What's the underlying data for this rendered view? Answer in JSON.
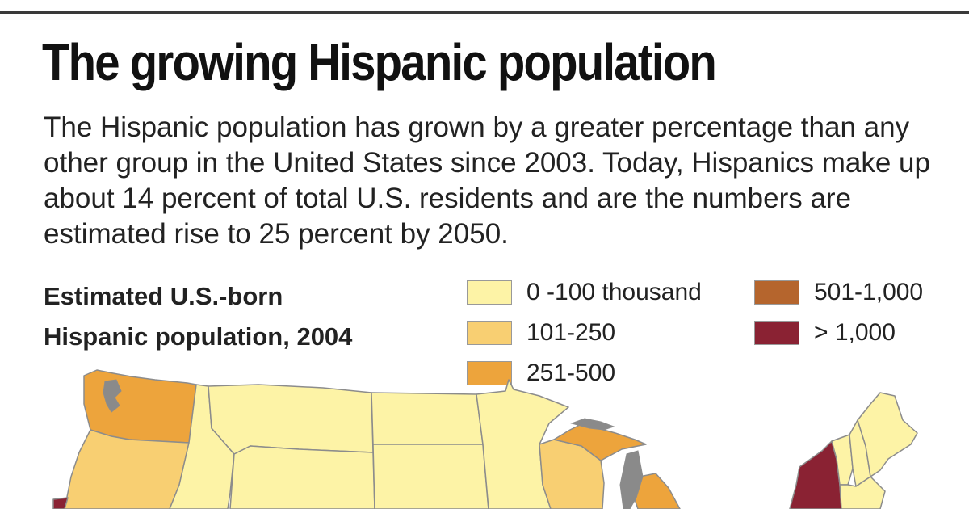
{
  "title": "The growing Hispanic population",
  "intro": "The Hispanic population has grown by a greater percentage than any other group in the United States since 2003. Today, Hispanics make up about 14 percent of total U.S. residents and are the numbers are estimated rise to 25 percent by 2050.",
  "legend": {
    "title_line1": "Estimated U.S.-born",
    "title_line2": "Hispanic population, 2004",
    "items": [
      {
        "label": "0 -100 thousand",
        "color": "#fdf3a6"
      },
      {
        "label": "101-250",
        "color": "#f8cf72"
      },
      {
        "label": "251-500",
        "color": "#eda43c"
      },
      {
        "label": "501-1,000",
        "color": "#b5652d"
      },
      {
        "label": "> 1,000",
        "color": "#8a2233"
      }
    ]
  },
  "map": {
    "border_color": "#8c8c8c",
    "water_color": "#8a8a8a",
    "regions": [
      {
        "name": "Washington",
        "class": "251-500"
      },
      {
        "name": "Oregon",
        "class": "101-250"
      },
      {
        "name": "California",
        "class": "> 1,000"
      },
      {
        "name": "Idaho",
        "class": "0 -100 thousand"
      },
      {
        "name": "Montana",
        "class": "0 -100 thousand"
      },
      {
        "name": "Wyoming",
        "class": "0 -100 thousand"
      },
      {
        "name": "North Dakota",
        "class": "0 -100 thousand"
      },
      {
        "name": "South Dakota",
        "class": "0 -100 thousand"
      },
      {
        "name": "Minnesota",
        "class": "0 -100 thousand"
      },
      {
        "name": "Wisconsin",
        "class": "101-250"
      },
      {
        "name": "Michigan",
        "class": "251-500"
      },
      {
        "name": "New York",
        "class": "> 1,000"
      },
      {
        "name": "Vermont",
        "class": "0 -100 thousand"
      },
      {
        "name": "New Hampshire",
        "class": "0 -100 thousand"
      },
      {
        "name": "Maine",
        "class": "0 -100 thousand"
      }
    ]
  }
}
